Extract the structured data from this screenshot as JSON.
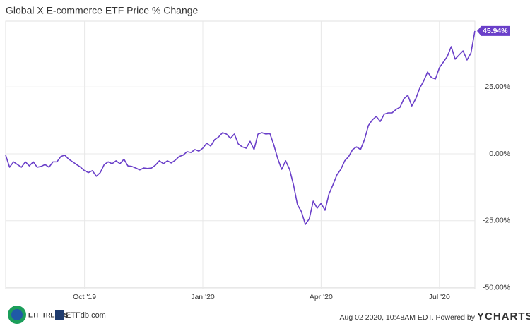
{
  "chart_data": {
    "type": "line",
    "title": "Global X E-commerce ETF Price % Change",
    "categories": [
      null,
      null,
      null,
      null,
      null,
      null,
      null,
      null,
      null,
      null,
      null,
      null,
      null,
      null,
      null,
      null,
      null,
      null,
      null,
      null,
      "Oct '19",
      null,
      null,
      null,
      null,
      null,
      null,
      null,
      null,
      null,
      null,
      null,
      null,
      null,
      null,
      null,
      null,
      null,
      null,
      null,
      null,
      null,
      null,
      null,
      null,
      null,
      null,
      null,
      null,
      null,
      "Jan '20",
      null,
      null,
      null,
      null,
      null,
      null,
      null,
      null,
      null,
      null,
      null,
      null,
      null,
      null,
      null,
      null,
      null,
      null,
      null,
      null,
      null,
      null,
      null,
      null,
      null,
      null,
      null,
      null,
      null,
      "Apr '20",
      null,
      null,
      null,
      null,
      null,
      null,
      null,
      null,
      null,
      null,
      null,
      null,
      null,
      null,
      null,
      null,
      null,
      null,
      null,
      null,
      null,
      null,
      null,
      null,
      null,
      null,
      null,
      null,
      null,
      "Jul '20",
      null,
      null,
      null,
      null,
      null,
      null,
      null,
      null,
      null
    ],
    "series": [
      {
        "color": "#6a3fc9",
        "values": [
          -0.5,
          -5,
          -3,
          -4,
          -5,
          -3,
          -4.5,
          -3,
          -5,
          -4.7,
          -4,
          -5,
          -3,
          -3,
          -1,
          -0.5,
          -2,
          -3,
          -4,
          -5,
          -6.3,
          -7,
          -6.3,
          -8.4,
          -7,
          -4,
          -3,
          -3.7,
          -2.6,
          -3.7,
          -2,
          -4.5,
          -4.7,
          -5.3,
          -6,
          -5.3,
          -5.5,
          -5.3,
          -4.2,
          -2.6,
          -3.7,
          -2.6,
          -3.4,
          -2.4,
          -1,
          -0.5,
          0.8,
          0.5,
          1.6,
          1,
          2.1,
          4,
          2.9,
          5.3,
          6.3,
          7.9,
          7.4,
          5.8,
          7.4,
          3.7,
          2.6,
          2.1,
          4.7,
          1.6,
          7.4,
          7.9,
          7.4,
          7.6,
          3.4,
          -1.8,
          -5.8,
          -2.6,
          -5.8,
          -11.6,
          -19,
          -21.6,
          -26.4,
          -24.3,
          -17.7,
          -20.3,
          -18.5,
          -21.1,
          -15,
          -11.6,
          -7.9,
          -5.8,
          -2.6,
          -1,
          1.6,
          2.6,
          1.6,
          5.3,
          10.6,
          12.7,
          14,
          12.1,
          14.8,
          15.3,
          15.3,
          16.6,
          17.4,
          20.6,
          21.9,
          17.9,
          20.6,
          24.5,
          27.2,
          30.6,
          28.5,
          28,
          32.2,
          34.3,
          36.4,
          40.1,
          35.4,
          37,
          38.5,
          35.1,
          37.7,
          45.94
        ],
        "value_labels": [
          null,
          null,
          null,
          null,
          null,
          null,
          null,
          null,
          null,
          null,
          null,
          null,
          null,
          null,
          null,
          null,
          null,
          null,
          null,
          null,
          null,
          null,
          null,
          null,
          null,
          null,
          null,
          null,
          null,
          null,
          null,
          null,
          null,
          null,
          null,
          null,
          null,
          null,
          null,
          null,
          null,
          null,
          null,
          null,
          null,
          null,
          null,
          null,
          null,
          null,
          null,
          null,
          null,
          null,
          null,
          null,
          null,
          null,
          null,
          null,
          null,
          null,
          null,
          null,
          null,
          null,
          null,
          null,
          null,
          null,
          null,
          null,
          null,
          null,
          null,
          null,
          null,
          null,
          null,
          null,
          null,
          null,
          null,
          null,
          null,
          null,
          null,
          null,
          null,
          null,
          null,
          null,
          null,
          null,
          null,
          null,
          null,
          null,
          null,
          null,
          null,
          null,
          null,
          null,
          null,
          null,
          null,
          null,
          null,
          null,
          null,
          null,
          null,
          null,
          null,
          null,
          null,
          null,
          null,
          "45.94%"
        ]
      }
    ],
    "ylim": [
      -50,
      50
    ],
    "yticks": [
      {
        "value": 25,
        "label": "25.00%"
      },
      {
        "value": 0,
        "label": "0.00%"
      },
      {
        "value": -25,
        "label": "-25.00%"
      },
      {
        "value": -50,
        "label": "-50.00%"
      }
    ],
    "grid": true
  },
  "footer": {
    "etf_trends": "ETF TRENDS",
    "etfdb": "ETFdb.com",
    "timestamp": "Aug 02 2020, 10:48AM EDT. Powered by",
    "brand": "YCHARTS"
  }
}
